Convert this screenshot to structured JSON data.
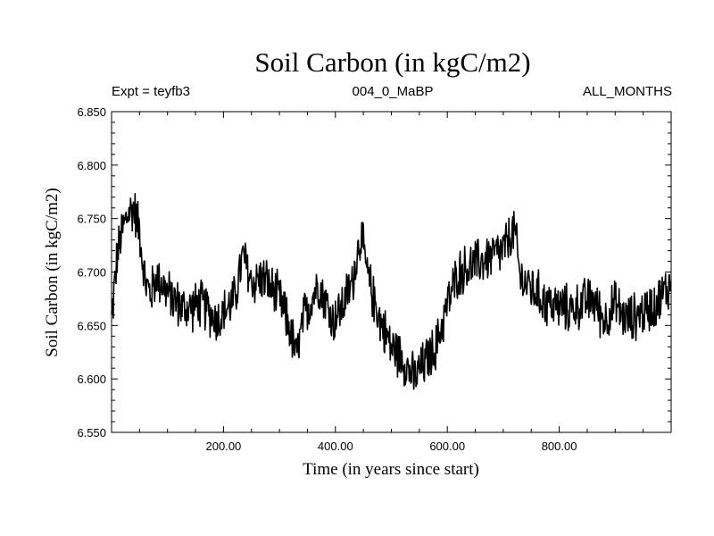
{
  "chart_data": {
    "type": "line",
    "title": "Soil Carbon (in kgC/m2)",
    "subtitle_left": "Expt = teyfb3",
    "subtitle_center": "004_0_MaBP",
    "subtitle_right": "ALL_MONTHS",
    "xlabel": "Time (in years since start)",
    "ylabel": "Soil Carbon (in kgC/m2)",
    "xlim": [
      0,
      1000
    ],
    "ylim": [
      6.55,
      6.85
    ],
    "x_ticks": [
      200,
      400,
      600,
      800
    ],
    "x_tick_labels": [
      "200.00",
      "400.00",
      "600.00",
      "800.00"
    ],
    "y_ticks": [
      6.55,
      6.6,
      6.65,
      6.7,
      6.75,
      6.8,
      6.85
    ],
    "y_tick_labels": [
      "6.550",
      "6.600",
      "6.650",
      "6.700",
      "6.750",
      "6.800",
      "6.850"
    ],
    "series": [
      {
        "name": "Soil Carbon",
        "color": "#000000",
        "trend_x": [
          0,
          10,
          20,
          30,
          40,
          50,
          60,
          70,
          80,
          90,
          100,
          130,
          160,
          190,
          220,
          235,
          250,
          270,
          300,
          320,
          330,
          345,
          370,
          395,
          410,
          430,
          445,
          460,
          480,
          500,
          520,
          540,
          560,
          580,
          600,
          620,
          640,
          660,
          680,
          700,
          720,
          730,
          750,
          780,
          820,
          860,
          880,
          900,
          920,
          940,
          960,
          980,
          1000
        ],
        "trend_y": [
          6.655,
          6.715,
          6.74,
          6.755,
          6.76,
          6.74,
          6.69,
          6.68,
          6.695,
          6.69,
          6.68,
          6.665,
          6.67,
          6.655,
          6.675,
          6.715,
          6.69,
          6.695,
          6.675,
          6.645,
          6.62,
          6.66,
          6.69,
          6.655,
          6.665,
          6.69,
          6.735,
          6.69,
          6.655,
          6.63,
          6.62,
          6.6,
          6.615,
          6.63,
          6.67,
          6.7,
          6.705,
          6.71,
          6.715,
          6.72,
          6.74,
          6.695,
          6.685,
          6.67,
          6.665,
          6.675,
          6.655,
          6.67,
          6.655,
          6.66,
          6.665,
          6.675,
          6.69
        ],
        "noise_amplitude": 0.026,
        "samples": 1000
      }
    ]
  }
}
